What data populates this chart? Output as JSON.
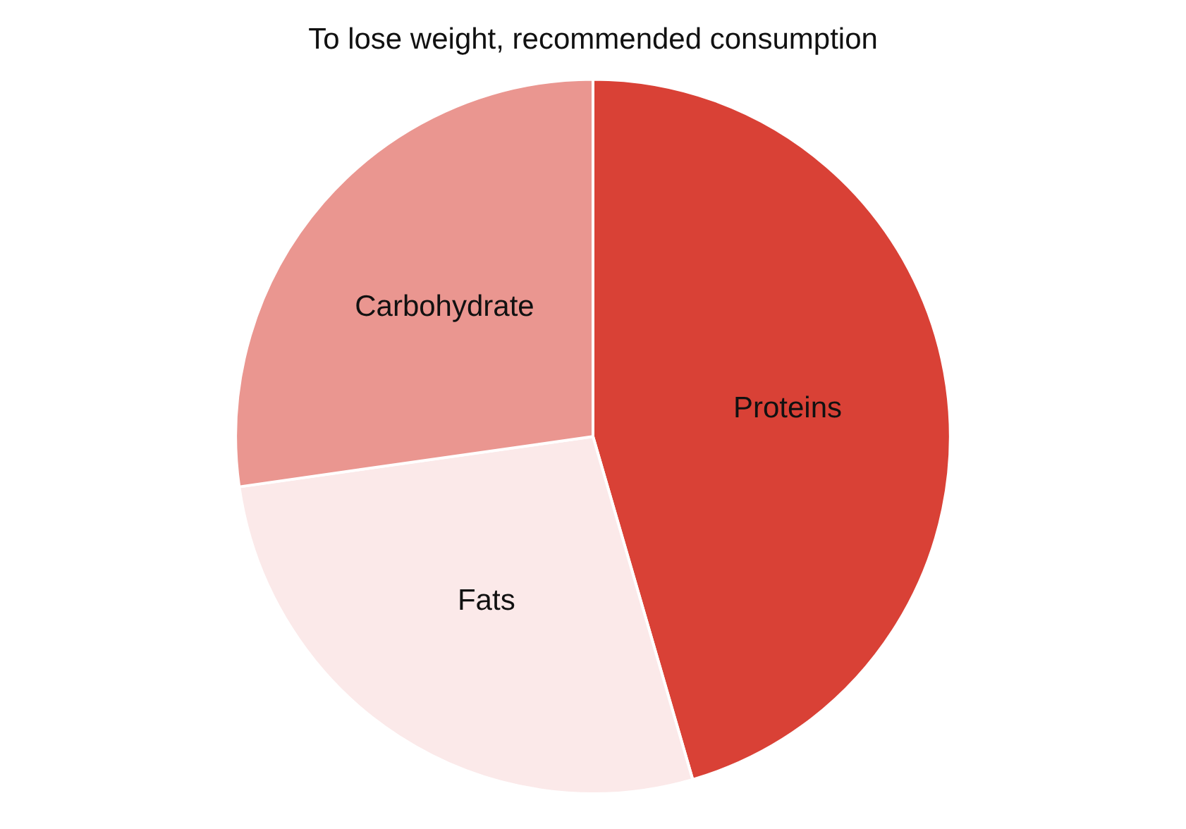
{
  "chart_data": {
    "type": "pie",
    "title": "To lose weight, recommended consumption",
    "categories": [
      "Proteins",
      "Fats",
      "Carbohydrate"
    ],
    "values": [
      45.5,
      27.25,
      27.25
    ],
    "colors": [
      "#d94136",
      "#fbe9e9",
      "#ea9690"
    ],
    "legend": false
  }
}
